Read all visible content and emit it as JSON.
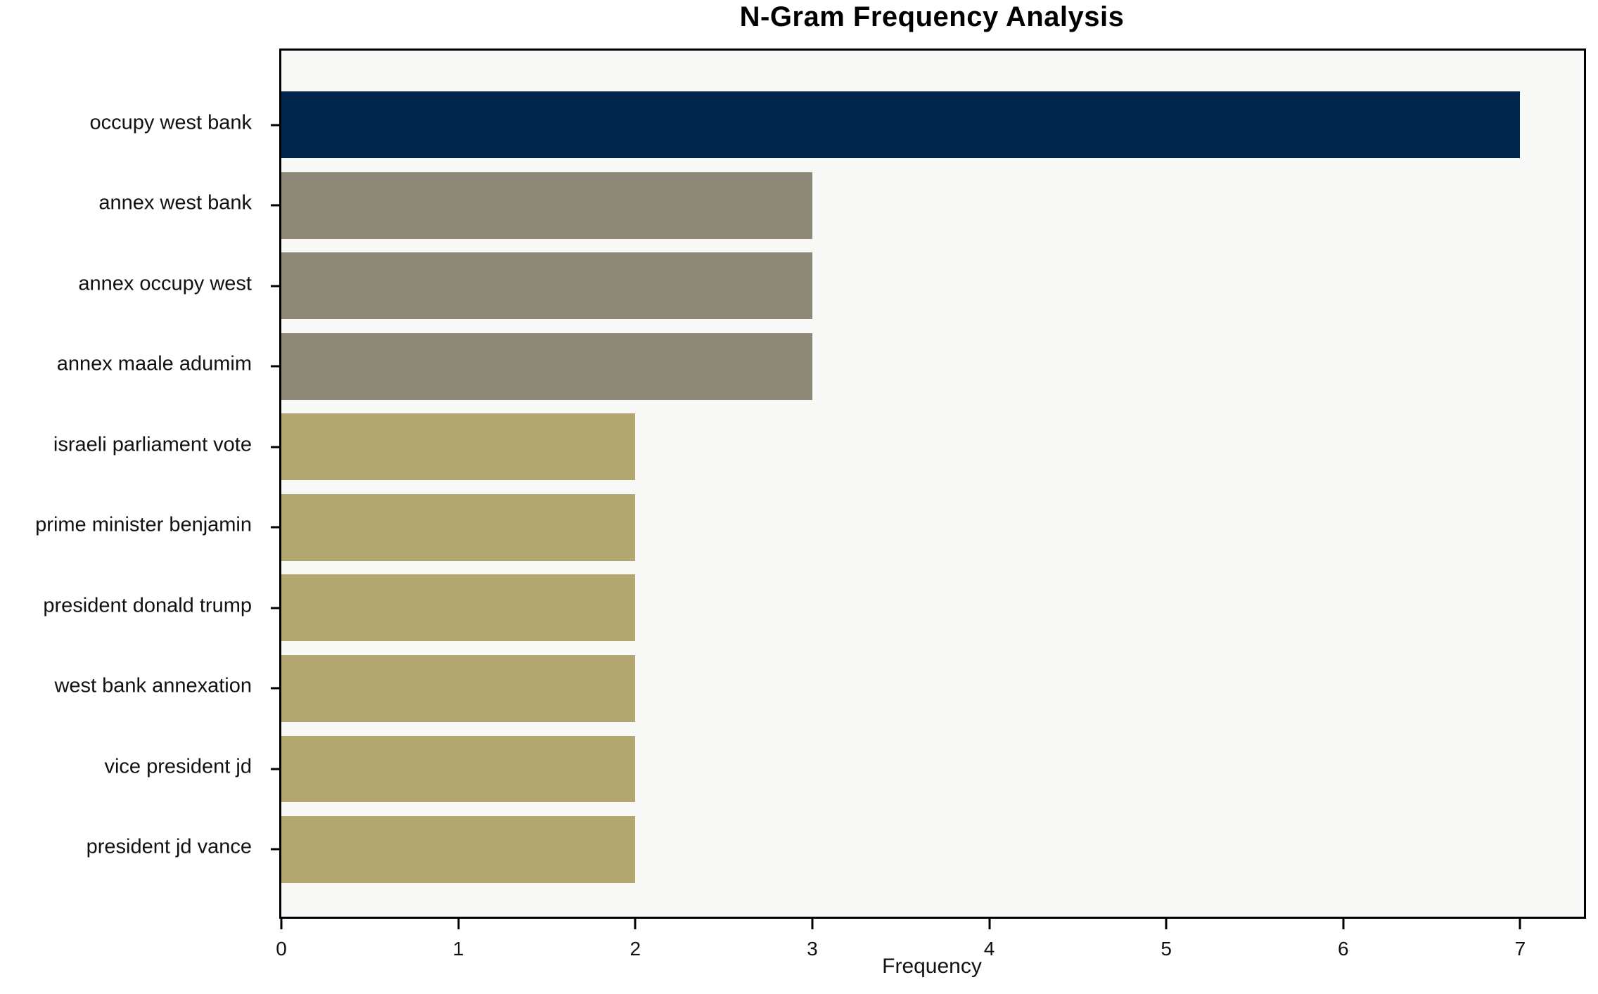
{
  "chart_data": {
    "type": "bar",
    "orientation": "horizontal",
    "title": "N-Gram Frequency Analysis",
    "xlabel": "Frequency",
    "ylabel": "",
    "categories": [
      "occupy west bank",
      "annex west bank",
      "annex occupy west",
      "annex maale adumim",
      "israeli parliament vote",
      "prime minister benjamin",
      "president donald trump",
      "west bank annexation",
      "vice president jd",
      "president jd vance"
    ],
    "values": [
      7,
      3,
      3,
      3,
      2,
      2,
      2,
      2,
      2,
      2
    ],
    "bar_colors": [
      "#02254e",
      "#8e8878",
      "#8e8878",
      "#8e8878",
      "#b1a76f",
      "#b1a76f",
      "#b1a76f",
      "#b1a76f",
      "#b1a76f",
      "#b1a76f"
    ],
    "xticks": [
      "0",
      "1",
      "2",
      "3",
      "4",
      "5",
      "6",
      "7"
    ],
    "xtick_values": [
      0,
      1,
      2,
      3,
      4,
      5,
      6,
      7
    ],
    "xlim": [
      0,
      7.36
    ],
    "grid": false,
    "legend_position": "none",
    "colors": {
      "plot_background": "#f8f8f6",
      "figure_background": "#ffffff",
      "spine": "#000000",
      "text": "#111111"
    }
  }
}
